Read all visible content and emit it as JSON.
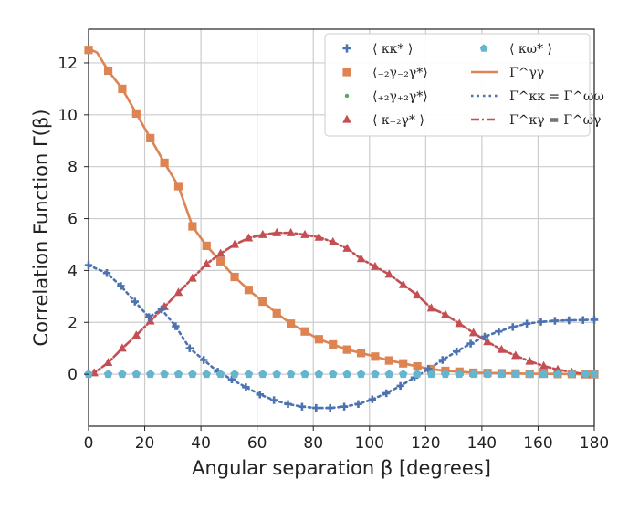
{
  "chart_data": {
    "type": "line",
    "title": "",
    "xlabel": "Angular separation β [degrees]",
    "ylabel": "Correlation Function Γ(β)",
    "xlim": [
      0,
      180
    ],
    "ylim": [
      -2.0,
      13.3
    ],
    "xticks": [
      0,
      20,
      40,
      60,
      80,
      100,
      120,
      140,
      160,
      180
    ],
    "yticks": [
      0,
      2,
      4,
      6,
      8,
      10,
      12
    ],
    "grid": true,
    "legend_position": "top-right",
    "colors": {
      "blue": "#4c72b0",
      "orange": "#dd8452",
      "green": "#55a868",
      "red": "#c44e52",
      "cyan": "#64b5cd"
    },
    "series": [
      {
        "name": "⟨ κκ* ⟩",
        "kind": "markers",
        "marker": "plus",
        "color": "#4c72b0",
        "x": [
          0,
          6.5,
          11.5,
          16.5,
          21.5,
          26,
          31,
          36,
          41,
          46,
          51,
          56,
          61,
          66,
          71,
          76,
          81,
          86,
          91,
          96,
          101,
          106,
          111,
          116,
          121,
          126,
          131,
          136,
          141,
          146,
          151,
          156,
          161,
          166,
          171,
          176,
          180
        ],
        "y": [
          4.2,
          3.9,
          3.4,
          2.8,
          2.2,
          2.5,
          1.85,
          1.0,
          0.55,
          0.1,
          -0.2,
          -0.5,
          -0.78,
          -1.0,
          -1.15,
          -1.25,
          -1.3,
          -1.3,
          -1.25,
          -1.15,
          -0.97,
          -0.73,
          -0.45,
          -0.13,
          0.2,
          0.55,
          0.88,
          1.18,
          1.45,
          1.65,
          1.82,
          1.95,
          2.02,
          2.06,
          2.08,
          2.09,
          2.1
        ]
      },
      {
        "name": "⟨₋₂γ₋₂γ*⟩",
        "kind": "markers",
        "marker": "square",
        "color": "#dd8452",
        "x": [
          0,
          7,
          12,
          17,
          22,
          27,
          32,
          37,
          42,
          47,
          52,
          57,
          62,
          67,
          72,
          77,
          82,
          87,
          92,
          97,
          102,
          107,
          112,
          117,
          122,
          127,
          132,
          137,
          142,
          147,
          152,
          157,
          162,
          167,
          172,
          177,
          180
        ],
        "y": [
          12.5,
          11.7,
          11.0,
          10.05,
          9.1,
          8.15,
          7.25,
          5.7,
          4.95,
          4.35,
          3.75,
          3.25,
          2.8,
          2.35,
          1.95,
          1.65,
          1.35,
          1.15,
          0.95,
          0.82,
          0.68,
          0.53,
          0.42,
          0.3,
          0.2,
          0.13,
          0.1,
          0.06,
          0.05,
          0.04,
          0.03,
          0.02,
          0.02,
          0.01,
          0.01,
          0.0,
          0.0
        ]
      },
      {
        "name": "⟨₊₂γ₊₂γ*⟩",
        "kind": "markers",
        "marker": "dot",
        "color": "#55a868",
        "x": [],
        "y": []
      },
      {
        "name": "⟨ κ₋₂γ* ⟩",
        "kind": "markers",
        "marker": "triangle",
        "color": "#c44e52",
        "x": [
          2,
          7,
          12,
          17,
          22,
          27,
          32,
          37,
          42,
          47,
          52,
          57,
          62,
          67,
          72,
          77,
          82,
          87,
          92,
          97,
          102,
          107,
          112,
          117,
          122,
          127,
          132,
          137,
          142,
          147,
          152,
          157,
          162,
          167,
          172,
          177
        ],
        "y": [
          0.05,
          0.45,
          1.0,
          1.5,
          2.05,
          2.6,
          3.15,
          3.7,
          4.25,
          4.65,
          5.0,
          5.25,
          5.38,
          5.45,
          5.45,
          5.38,
          5.28,
          5.1,
          4.85,
          4.45,
          4.15,
          3.85,
          3.45,
          3.05,
          2.55,
          2.3,
          1.95,
          1.6,
          1.25,
          0.95,
          0.72,
          0.5,
          0.32,
          0.18,
          0.08,
          0.0
        ]
      },
      {
        "name": "⟨ κω* ⟩",
        "kind": "markers",
        "marker": "pentagon",
        "color": "#64b5cd",
        "x": [
          0,
          7,
          12,
          17,
          22,
          27,
          32,
          37,
          42,
          47,
          52,
          57,
          62,
          67,
          72,
          77,
          82,
          87,
          92,
          97,
          102,
          107,
          112,
          117,
          122,
          127,
          132,
          137,
          142,
          147,
          152,
          157,
          162,
          167,
          172,
          177,
          180
        ],
        "y": [
          0,
          0,
          0,
          0,
          0,
          0,
          0,
          0,
          0,
          0,
          0,
          0,
          0,
          0,
          0,
          0,
          0,
          0,
          0,
          0,
          0,
          0,
          0,
          0,
          0,
          0,
          0,
          0,
          0,
          0,
          0,
          0,
          0,
          0,
          0,
          0,
          0
        ]
      },
      {
        "name": "Γ^γγ",
        "kind": "line",
        "style": "solid",
        "color": "#dd8452",
        "x": [
          0,
          3,
          7,
          12,
          17,
          22,
          27,
          32,
          37,
          42,
          47,
          52,
          57,
          62,
          67,
          72,
          77,
          82,
          87,
          92,
          97,
          102,
          107,
          112,
          117,
          122,
          127,
          132,
          137,
          142,
          147,
          152,
          157,
          162,
          167,
          172,
          177,
          180
        ],
        "y": [
          12.55,
          12.4,
          11.7,
          11.0,
          10.05,
          9.1,
          8.15,
          7.25,
          5.7,
          4.95,
          4.35,
          3.75,
          3.25,
          2.8,
          2.35,
          1.95,
          1.65,
          1.35,
          1.15,
          0.95,
          0.82,
          0.68,
          0.53,
          0.42,
          0.3,
          0.2,
          0.13,
          0.1,
          0.06,
          0.05,
          0.04,
          0.03,
          0.02,
          0.02,
          0.01,
          0.01,
          0.0,
          0.0
        ]
      },
      {
        "name": "Γ^κκ = Γ^ωω",
        "kind": "line",
        "style": "dotted",
        "color": "#4c72b0",
        "x": [
          0,
          6.5,
          11.5,
          16.5,
          21.5,
          26,
          31,
          36,
          41,
          46,
          51,
          56,
          61,
          66,
          71,
          76,
          81,
          86,
          91,
          96,
          101,
          106,
          111,
          116,
          121,
          126,
          131,
          136,
          141,
          146,
          151,
          156,
          161,
          166,
          171,
          176,
          180
        ],
        "y": [
          4.2,
          3.9,
          3.4,
          2.8,
          2.2,
          2.5,
          1.85,
          1.0,
          0.55,
          0.1,
          -0.2,
          -0.5,
          -0.78,
          -1.0,
          -1.15,
          -1.25,
          -1.3,
          -1.3,
          -1.25,
          -1.15,
          -0.97,
          -0.73,
          -0.45,
          -0.13,
          0.2,
          0.55,
          0.88,
          1.18,
          1.45,
          1.65,
          1.82,
          1.95,
          2.02,
          2.06,
          2.08,
          2.09,
          2.1
        ]
      },
      {
        "name": "Γ^κγ = Γ^ωγ",
        "kind": "line",
        "style": "dashdot",
        "color": "#c44e52",
        "x": [
          0,
          2,
          7,
          12,
          17,
          22,
          27,
          32,
          37,
          42,
          47,
          52,
          57,
          62,
          67,
          72,
          77,
          82,
          87,
          92,
          97,
          102,
          107,
          112,
          117,
          122,
          127,
          132,
          137,
          142,
          147,
          152,
          157,
          162,
          167,
          172,
          177,
          180
        ],
        "y": [
          0.0,
          0.05,
          0.45,
          1.0,
          1.5,
          2.05,
          2.6,
          3.15,
          3.7,
          4.25,
          4.65,
          5.0,
          5.25,
          5.38,
          5.45,
          5.45,
          5.38,
          5.28,
          5.1,
          4.85,
          4.45,
          4.15,
          3.85,
          3.45,
          3.05,
          2.55,
          2.3,
          1.95,
          1.6,
          1.25,
          0.95,
          0.72,
          0.5,
          0.32,
          0.18,
          0.08,
          0.0,
          0.0
        ]
      }
    ],
    "legend": {
      "col1": [
        {
          "series": "⟨ κκ* ⟩",
          "label": "⟨ κκ* ⟩"
        },
        {
          "series": "⟨₋₂γ₋₂γ*⟩",
          "label": "⟨₋₂γ₋₂γ*⟩"
        },
        {
          "series": "⟨₊₂γ₊₂γ*⟩",
          "label": "⟨₊₂γ₊₂γ*⟩"
        },
        {
          "series": "⟨ κ₋₂γ* ⟩",
          "label": "⟨ κ₋₂γ* ⟩"
        }
      ],
      "col2": [
        {
          "series": "⟨ κω* ⟩",
          "label": "⟨ κω* ⟩"
        },
        {
          "series": "Γ^γγ",
          "label": "Γ^γγ"
        },
        {
          "series": "Γ^κκ = Γ^ωω",
          "label": "Γ^κκ = Γ^ωω"
        },
        {
          "series": "Γ^κγ = Γ^ωγ",
          "label": "Γ^κγ = Γ^ωγ"
        }
      ]
    }
  }
}
